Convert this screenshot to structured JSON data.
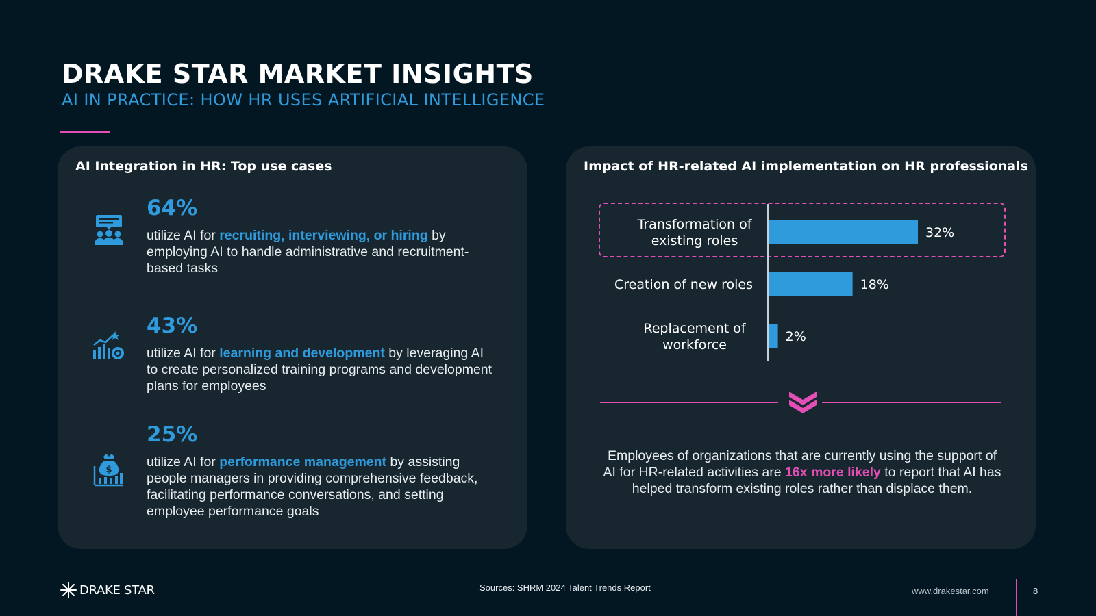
{
  "header": {
    "title": "DRAKE STAR MARKET INSIGHTS",
    "subtitle": "AI IN PRACTICE: HOW HR USES ARTIFICIAL INTELLIGENCE"
  },
  "left_panel": {
    "title": "AI Integration in HR: Top use cases",
    "stats": [
      {
        "icon": "presentation-group-icon",
        "percent": "64%",
        "prefix": "utilize AI for ",
        "highlight": "recruiting, interviewing, or hiring",
        "suffix": " by employing AI to handle administrative and recruitment-based tasks"
      },
      {
        "icon": "growth-chart-gear-icon",
        "percent": "43%",
        "prefix": "utilize AI for ",
        "highlight": "learning and development",
        "suffix": " by leveraging AI to create personalized training programs and development plans for employees"
      },
      {
        "icon": "money-bag-chart-icon",
        "percent": "25%",
        "prefix": "utilize AI for ",
        "highlight": "performance management",
        "suffix": " by assisting people managers in providing comprehensive feedback, facilitating performance conversations, and setting employee performance goals"
      }
    ]
  },
  "right_panel": {
    "title": "Impact of HR-related AI implementation on HR professionals",
    "note_prefix": "Employees of organizations that are currently using the support of AI for HR-related activities are ",
    "note_highlight": "16x more likely",
    "note_suffix": " to report that AI has helped transform existing roles rather than displace them."
  },
  "chart_data": {
    "type": "bar",
    "orientation": "horizontal",
    "title": "Impact of HR-related AI implementation on HR professionals",
    "categories": [
      [
        "Transformation of",
        "existing roles"
      ],
      [
        "Creation of new roles"
      ],
      [
        "Replacement of",
        "workforce"
      ]
    ],
    "values": [
      32,
      18,
      2
    ],
    "value_labels": [
      "32%",
      "18%",
      "2%"
    ],
    "xlim": [
      0,
      40
    ],
    "highlighted_category_index": 0,
    "grid": false,
    "bar_color": "#2f9bdc"
  },
  "footer": {
    "logo": "DRAKE STAR",
    "sources": "Sources: SHRM 2024 Talent Trends Report",
    "website": "www.drakestar.com",
    "page": "8"
  },
  "colors": {
    "background": "#021722",
    "panel": "#17262f",
    "accent_blue": "#2f9bdc",
    "accent_pink": "#e34fb5"
  }
}
